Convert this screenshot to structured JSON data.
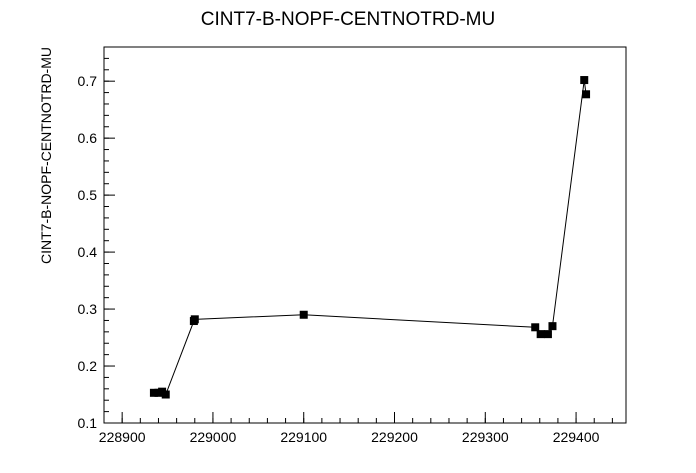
{
  "chart_data": {
    "type": "line",
    "title": "CINT7-B-NOPF-CENTNOTRD-MU",
    "xlabel": "",
    "ylabel": "CINT7-B-NOPF-CENTNOTRD-MU",
    "xlim": [
      228880,
      229455
    ],
    "ylim": [
      0.1,
      0.76
    ],
    "x_ticks": [
      228900,
      229000,
      229100,
      229200,
      229300,
      229400
    ],
    "x_tick_labels": [
      "228900",
      "229000",
      "229100",
      "229200",
      "229300",
      "229400"
    ],
    "y_ticks": [
      0.1,
      0.2,
      0.3,
      0.4,
      0.5,
      0.6,
      0.7
    ],
    "y_tick_labels": [
      "0.1",
      "0.2",
      "0.3",
      "0.4",
      "0.5",
      "0.6",
      "0.7"
    ],
    "grid": false,
    "legend": "none",
    "marker": "square",
    "color": "#000000",
    "series": [
      {
        "x": [
          228935,
          228940,
          228944,
          228948,
          228979,
          228980,
          229100,
          229355,
          229361,
          229369,
          229374,
          229409,
          229411
        ],
        "y": [
          0.153,
          0.153,
          0.155,
          0.15,
          0.279,
          0.282,
          0.29,
          0.268,
          0.256,
          0.256,
          0.27,
          0.702,
          0.677
        ]
      }
    ]
  }
}
